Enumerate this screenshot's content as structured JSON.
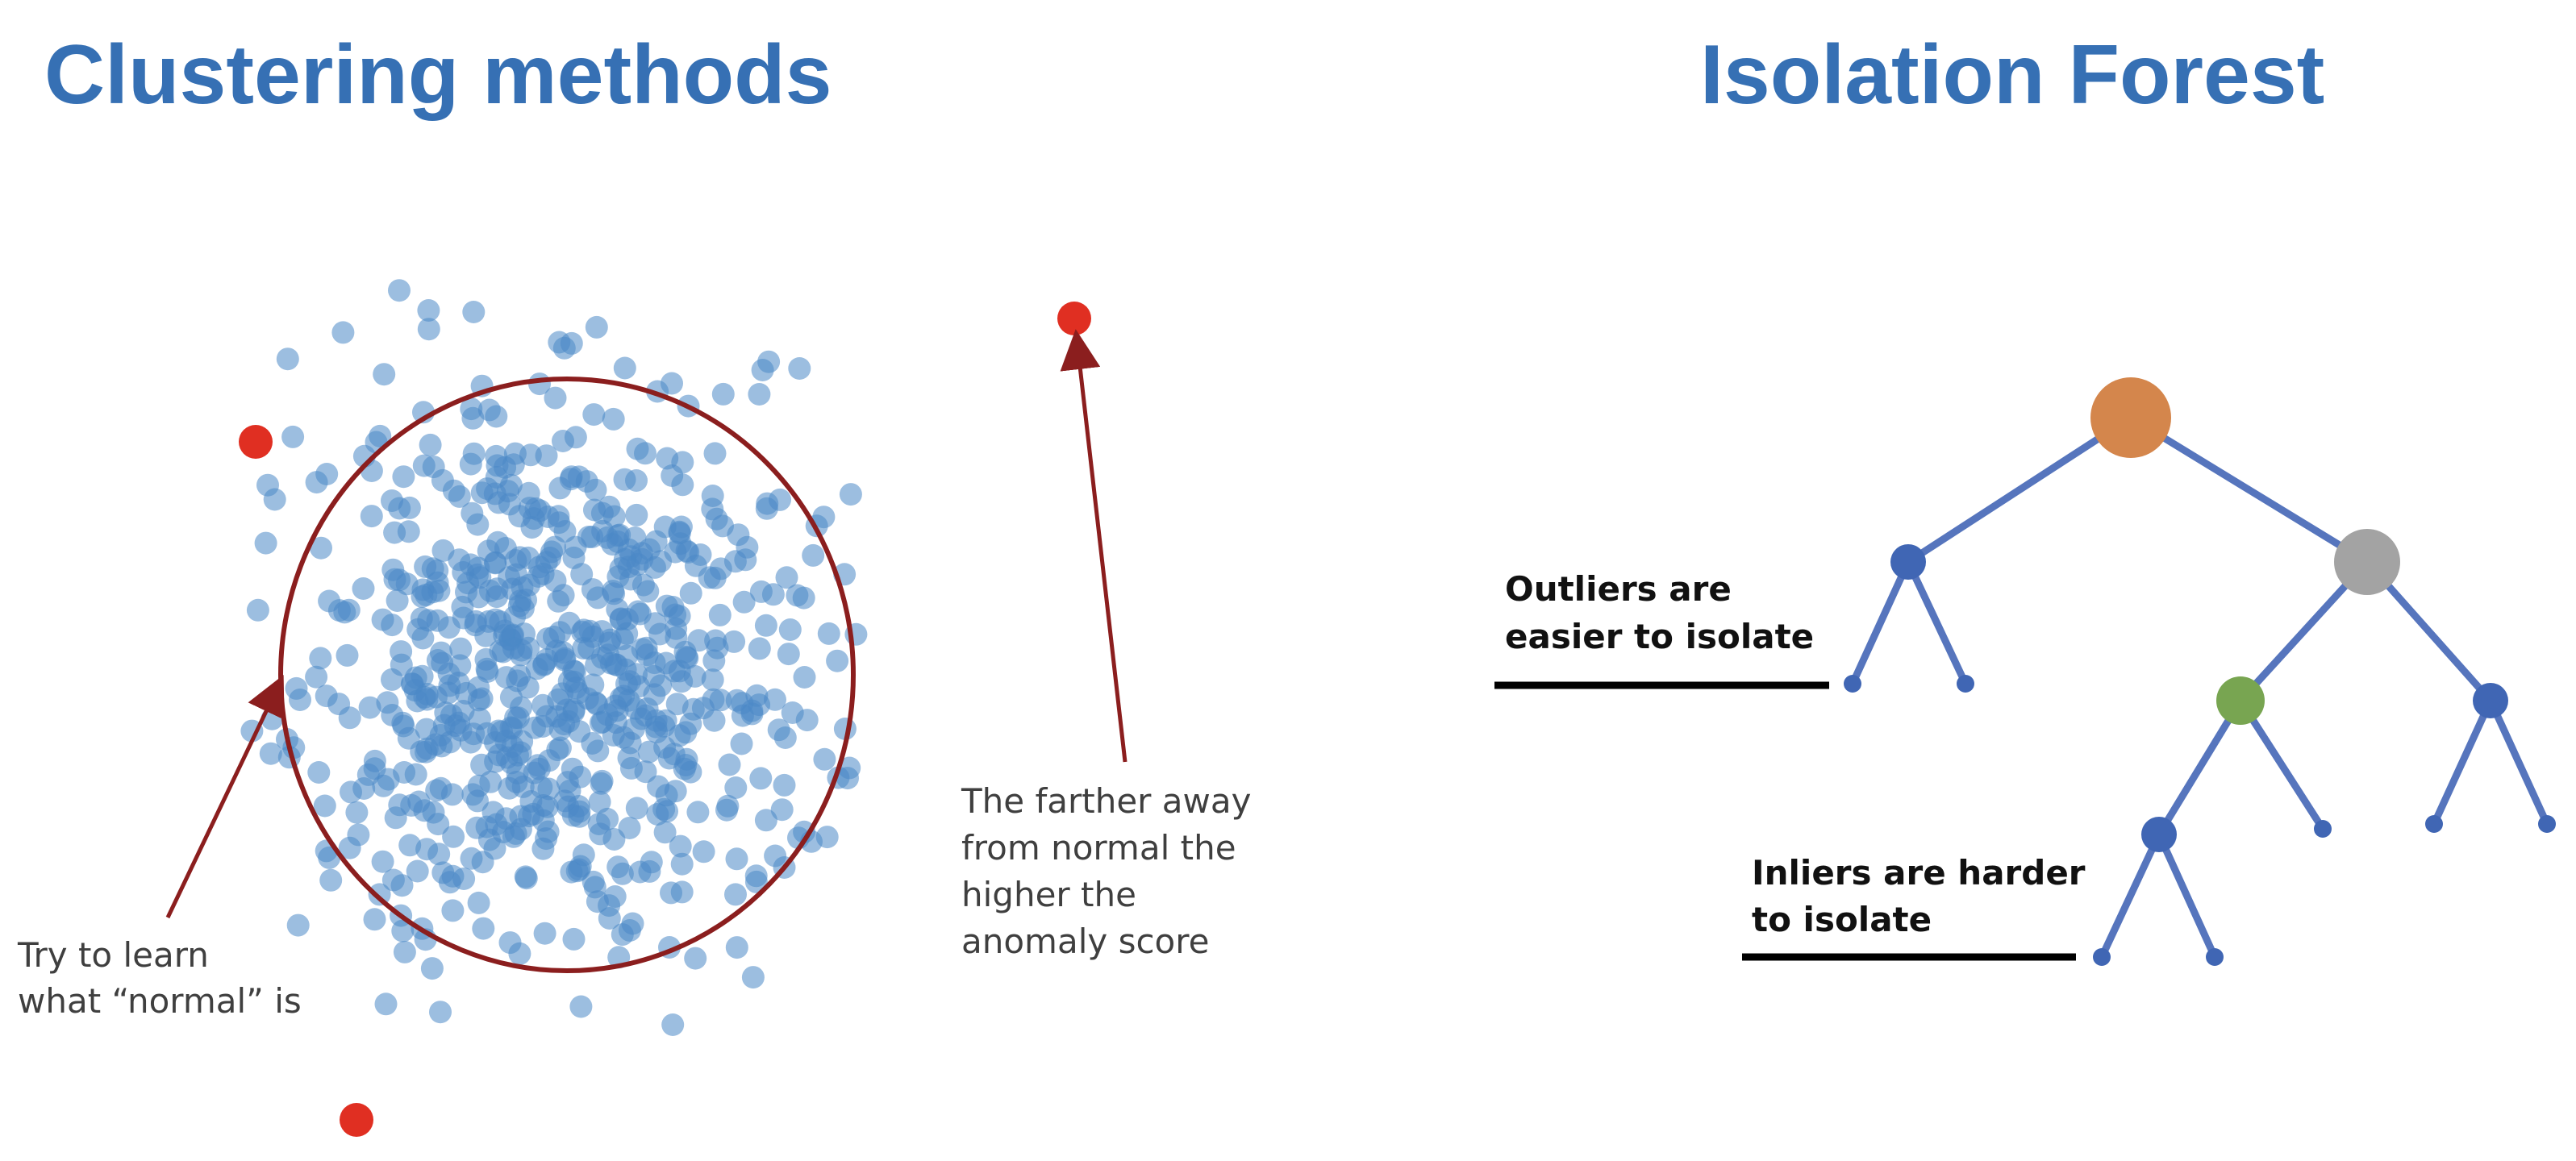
{
  "left_panel": {
    "title": "Clustering methods",
    "caption_normal": [
      "Try to learn",
      "what “normal” is"
    ],
    "caption_anomaly": [
      "The farther away",
      "from normal the",
      "higher the",
      "anomaly score"
    ]
  },
  "right_panel": {
    "title": "Isolation Forest",
    "caption_outliers": [
      "Outliers are",
      "easier to isolate"
    ],
    "caption_inliers": [
      "Inliers are harder",
      "to isolate"
    ]
  },
  "colors": {
    "title": "#3670b4",
    "cluster_point": "#4a88c6",
    "outlier_point": "#e02f22",
    "boundary": "#8b1e1e",
    "tree_edge": "#5675bd",
    "node_blue": "#4066b4",
    "node_orange": "#d4864c",
    "node_gray": "#a3a3a3",
    "node_green": "#78a551"
  },
  "icons": {
    "arrow_normal": "arrow-up-right-icon",
    "arrow_anomaly": "arrow-up-icon"
  }
}
